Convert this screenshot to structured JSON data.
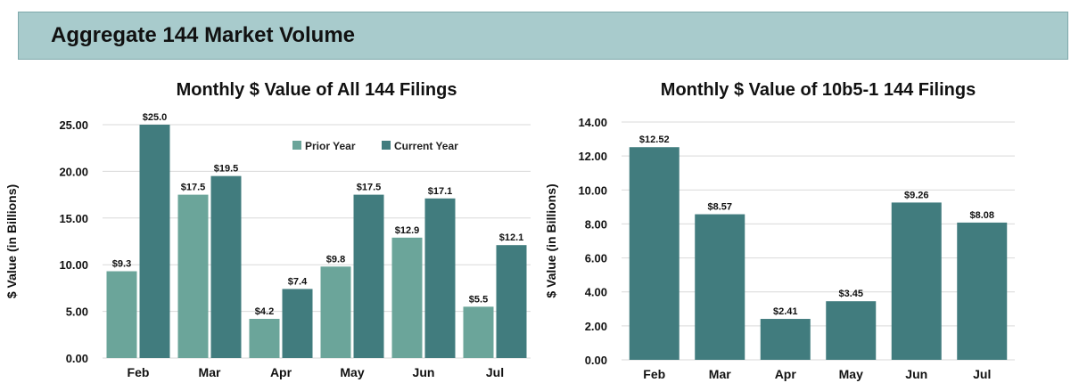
{
  "banner": {
    "title": "Aggregate 144 Market Volume"
  },
  "colors": {
    "banner_bg": "#a8cbcc",
    "prior_year": "#6ba59a",
    "current_year": "#417c7e",
    "grid": "#d9d9d9"
  },
  "chart_data": [
    {
      "type": "bar",
      "title": "Monthly $ Value of All 144 Filings",
      "ylabel": "$ Value (in Billions)",
      "xlabel": "",
      "categories": [
        "Feb",
        "Mar",
        "Apr",
        "May",
        "Jun",
        "Jul"
      ],
      "ylim": [
        0,
        25
      ],
      "yticks": [
        0,
        5,
        10,
        15,
        20,
        25
      ],
      "ytick_labels": [
        "0.00",
        "5.00",
        "10.00",
        "15.00",
        "20.00",
        "25.00"
      ],
      "grid": true,
      "legend_position": "top-right",
      "series": [
        {
          "name": "Prior Year",
          "color": "#6ba59a",
          "values": [
            9.3,
            17.5,
            4.2,
            9.8,
            12.9,
            5.5
          ],
          "labels": [
            "$9.3",
            "$17.5",
            "$4.2",
            "$9.8",
            "$12.9",
            "$5.5"
          ]
        },
        {
          "name": "Current Year",
          "color": "#417c7e",
          "values": [
            25.0,
            19.5,
            7.4,
            17.5,
            17.1,
            12.1
          ],
          "labels": [
            "$25.0",
            "$19.5",
            "$7.4",
            "$17.5",
            "$17.1",
            "$12.1"
          ]
        }
      ]
    },
    {
      "type": "bar",
      "title": "Monthly $ Value of 10b5-1 144 Filings",
      "ylabel": "$ Value (in Billions)",
      "xlabel": "",
      "categories": [
        "Feb",
        "Mar",
        "Apr",
        "May",
        "Jun",
        "Jul"
      ],
      "ylim": [
        0,
        14
      ],
      "yticks": [
        0,
        2,
        4,
        6,
        8,
        10,
        12,
        14
      ],
      "ytick_labels": [
        "0.00",
        "2.00",
        "4.00",
        "6.00",
        "8.00",
        "10.00",
        "12.00",
        "14.00"
      ],
      "grid": true,
      "series": [
        {
          "color": "#417c7e",
          "values": [
            12.52,
            8.57,
            2.41,
            3.45,
            9.26,
            8.08
          ],
          "labels": [
            "$12.52",
            "$8.57",
            "$2.41",
            "$3.45",
            "$9.26",
            "$8.08"
          ]
        }
      ]
    }
  ]
}
